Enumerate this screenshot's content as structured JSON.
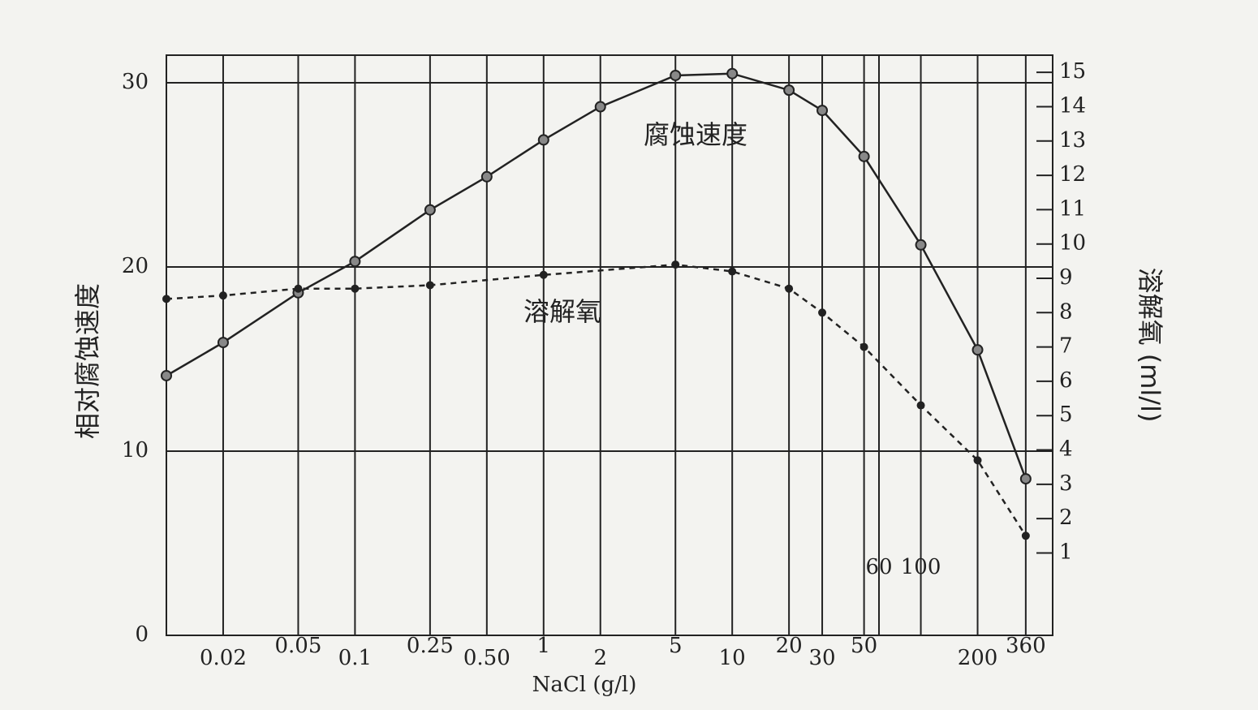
{
  "chart_data": {
    "type": "line",
    "xlabel": "NaCl (g/l)",
    "ylabel": "相对腐蚀速度",
    "y2label": "溶解氧 (ml/l)",
    "xscale": "log",
    "xlim": [
      0.01,
      500
    ],
    "xticks": [
      0.02,
      0.05,
      0.1,
      0.25,
      {
        "value": 0.5,
        "label": "0.50"
      },
      1,
      2,
      5,
      10,
      20,
      30,
      50,
      60,
      100,
      200,
      360
    ],
    "ylim": [
      0,
      31.5
    ],
    "yticks": [
      0,
      10,
      20,
      30
    ],
    "y2lim": [
      -1.4,
      15.5
    ],
    "y2ticks": [
      1,
      2,
      3,
      4,
      5,
      6,
      7,
      8,
      9,
      10,
      11,
      12,
      13,
      14,
      15
    ],
    "grid": true,
    "series": [
      {
        "name": "腐蚀速度",
        "color": "#222",
        "style": "solid",
        "x": [
          0.01,
          0.02,
          0.05,
          0.1,
          0.25,
          0.5,
          1,
          2,
          5,
          10,
          20,
          30,
          50,
          100,
          200,
          360
        ],
        "values": [
          14.1,
          15.9,
          18.6,
          20.3,
          23.1,
          24.9,
          26.9,
          28.7,
          30.4,
          30.5,
          29.6,
          28.5,
          26.0,
          21.2,
          15.5,
          8.5
        ]
      },
      {
        "name": "溶解氧",
        "color": "#222",
        "style": "dashed",
        "axis": "y2",
        "x": [
          0.01,
          0.02,
          0.05,
          0.1,
          0.25,
          1,
          5,
          10,
          20,
          30,
          50,
          100,
          200,
          360
        ],
        "values": [
          8.4,
          8.5,
          8.7,
          8.7,
          8.8,
          9.1,
          9.4,
          9.2,
          8.7,
          8.0,
          7.0,
          5.3,
          3.7,
          1.5
        ]
      }
    ]
  }
}
